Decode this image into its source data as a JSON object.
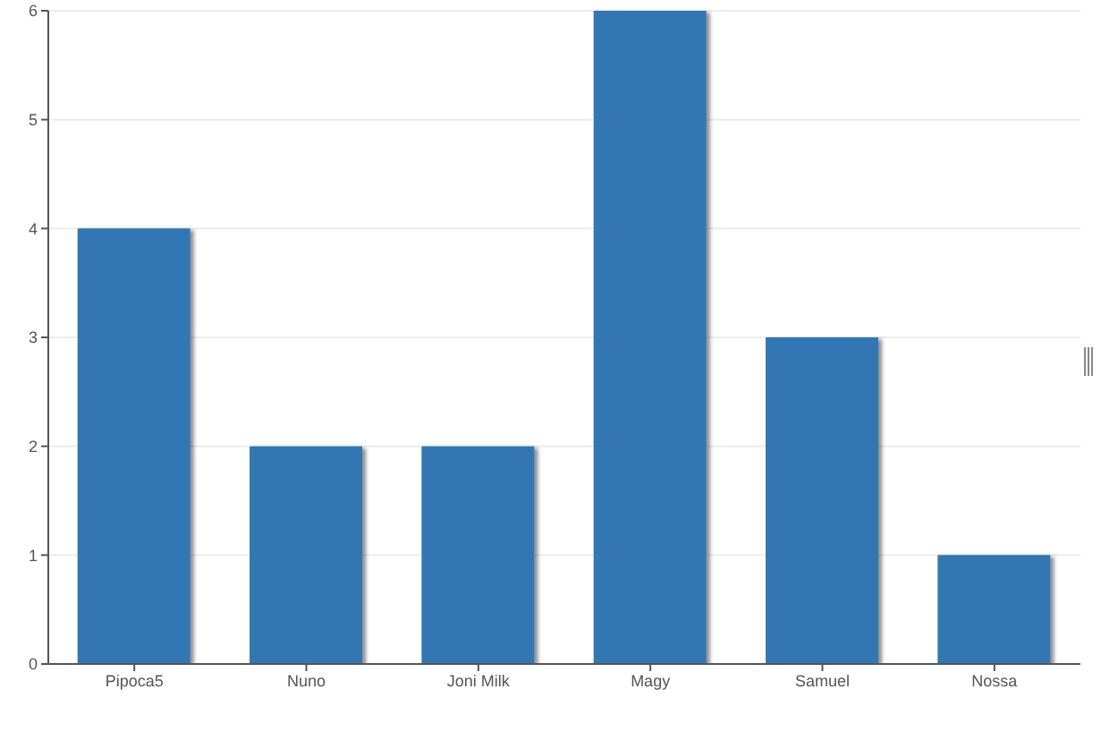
{
  "chart_data": {
    "type": "bar",
    "categories": [
      "Pipoca5",
      "Nuno",
      "Joni Milk",
      "Magy",
      "Samuel",
      "Nossa"
    ],
    "values": [
      4,
      2,
      2,
      6,
      3,
      1
    ],
    "color": "#3277b3",
    "ylim": [
      0,
      6
    ],
    "yticks": [
      0,
      1,
      2,
      3,
      4,
      5,
      6
    ],
    "grid": "y"
  }
}
